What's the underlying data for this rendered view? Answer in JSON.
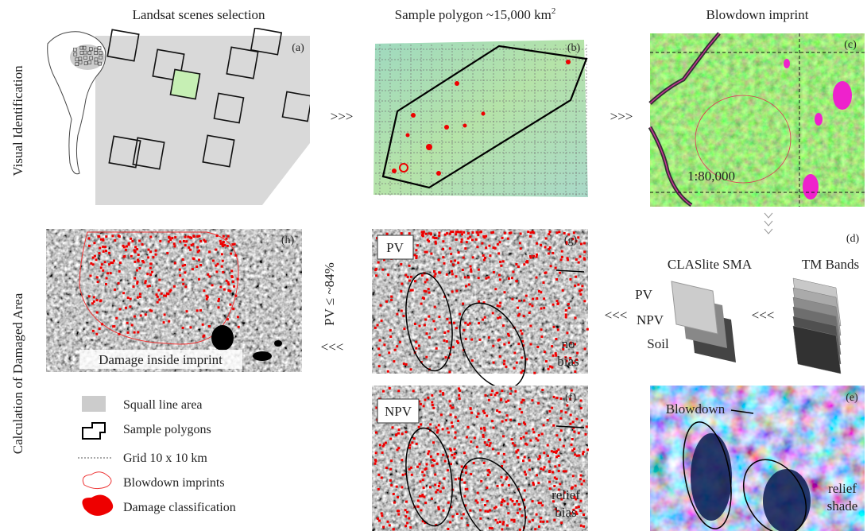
{
  "row_labels": [
    "Visual Identification",
    "Calculation of Damaged Area"
  ],
  "arrows": {
    "right": ">>>",
    "left": "<<<"
  },
  "threshold": "PV ≤ ~84%",
  "panels": [
    {
      "letter": "(a)",
      "title": "Landsat scenes selection"
    },
    {
      "letter": "(b)",
      "title": "Sample polygon ~15,000 km",
      "title_sup": "2"
    },
    {
      "letter": "(c)",
      "title": "Blowdown imprint",
      "scale": "1:80,000"
    },
    {
      "letter": "(d)",
      "left_title": "CLASlite SMA",
      "right_title": "TM Bands",
      "layers": [
        "PV",
        "NPV",
        "Soil"
      ]
    },
    {
      "letter": "(e)",
      "annotation": "Blowdown",
      "corner_note": [
        "relief",
        "shade"
      ]
    },
    {
      "letter": "(f)",
      "tag": "NPV",
      "corner_note": [
        "relief",
        "bias"
      ]
    },
    {
      "letter": "(g)",
      "tag": "PV",
      "corner_note": [
        "no",
        "bias"
      ]
    },
    {
      "letter": "(h)",
      "caption": "Damage inside imprint"
    }
  ],
  "legend": [
    "Squall line area",
    "Sample polygons",
    "Grid 10 x 10 km",
    "Blowdown imprints",
    "Damage classification"
  ]
}
